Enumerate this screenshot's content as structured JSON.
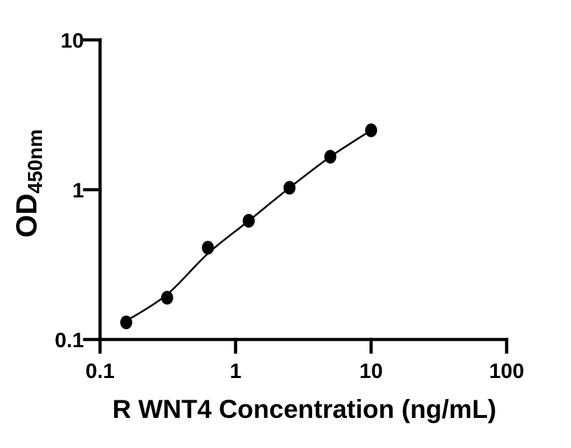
{
  "figure": {
    "background_color": "#ffffff",
    "ink_color": "#000000"
  },
  "chart_data": {
    "type": "scatter",
    "title": "",
    "xlabel": "R WNT4 Concentration (ng/mL)",
    "ylabel": "OD",
    "ylabel_subscript": "450nm",
    "x_scale": "log",
    "y_scale": "log",
    "xlim": [
      0.1,
      100
    ],
    "ylim": [
      0.1,
      10
    ],
    "x_ticks": [
      0.1,
      1,
      10,
      100
    ],
    "x_tick_labels": [
      "0.1",
      "1",
      "10",
      "100"
    ],
    "y_ticks": [
      0.1,
      1,
      10
    ],
    "y_tick_labels": [
      "0.1",
      "1",
      "10"
    ],
    "grid": false,
    "legend": "none",
    "series": [
      {
        "name": "standard points",
        "type": "scatter",
        "marker": "filled-circle",
        "color": "#000000",
        "x": [
          0.156,
          0.3125,
          0.625,
          1.25,
          2.5,
          5,
          10
        ],
        "y": [
          0.13,
          0.19,
          0.41,
          0.62,
          1.03,
          1.66,
          2.49
        ]
      },
      {
        "name": "fitted curve",
        "type": "line",
        "color": "#000000",
        "x": [
          0.156,
          0.3125,
          0.625,
          1.25,
          2.5,
          5,
          10
        ],
        "y": [
          0.133,
          0.2,
          0.375,
          0.62,
          1.03,
          1.66,
          2.49
        ]
      }
    ]
  }
}
